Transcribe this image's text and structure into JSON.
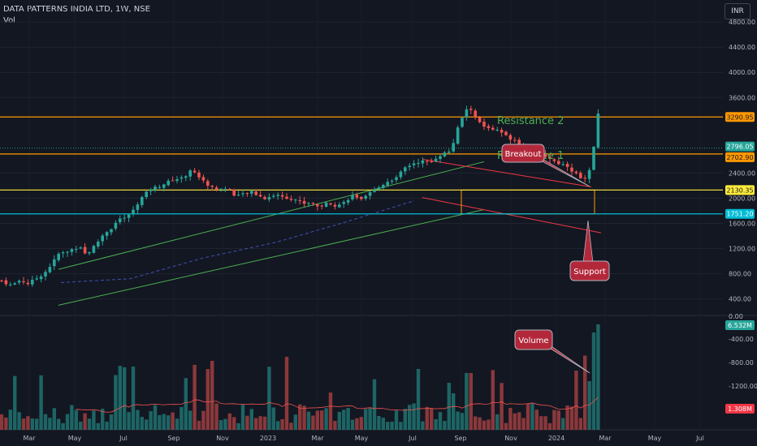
{
  "header": {
    "symbol_line": "DATA PATTERNS INDIA LTD, 1W, NSE",
    "volume_label": "Vol"
  },
  "currency_button": "INR",
  "chart_data": [
    {
      "type": "candlestick",
      "title": "DATA PATTERNS INDIA LTD, 1W, NSE",
      "y_axis_ticks": [
        "4800.00",
        "4400.00",
        "4000.00",
        "3600.00",
        "2400.00",
        "2000.00",
        "1600.00",
        "1200.00",
        "800.00",
        "400.00"
      ],
      "ylim": [
        150,
        5150
      ],
      "x_axis_ticks": [
        "Mar",
        "May",
        "Jul",
        "Sep",
        "Nov",
        "2023",
        "Mar",
        "May",
        "Jul",
        "Sep",
        "Nov",
        "2024",
        "Mar",
        "May",
        "Jul"
      ],
      "price_tags": [
        {
          "label": "3290.95",
          "value": 3290.95,
          "color": "#ff9800"
        },
        {
          "label": "2796.05",
          "value": 2796.05,
          "color": "#26a69a"
        },
        {
          "label": "2702.90",
          "value": 2702.9,
          "color": "#ff9800"
        },
        {
          "label": "2130.35",
          "value": 2130.35,
          "color": "#ffeb3b"
        },
        {
          "label": "1751.20",
          "value": 1751.2,
          "color": "#00bcd4"
        }
      ],
      "annotations": {
        "resistance_2": "Resistance 2",
        "resistance_1": "Resistance 1",
        "breakout": "Breakout",
        "support": "Support"
      }
    },
    {
      "type": "bar",
      "title": "Vol",
      "y_axis_ticks": [
        "0.00",
        "-400.00",
        "-800.00",
        "-1200.00"
      ],
      "value_tags": [
        {
          "label": "6.532M",
          "color": "#26a69a"
        },
        {
          "label": "1.308M",
          "color": "#f23645"
        }
      ],
      "annotations": {
        "volume": "Volume"
      }
    }
  ]
}
